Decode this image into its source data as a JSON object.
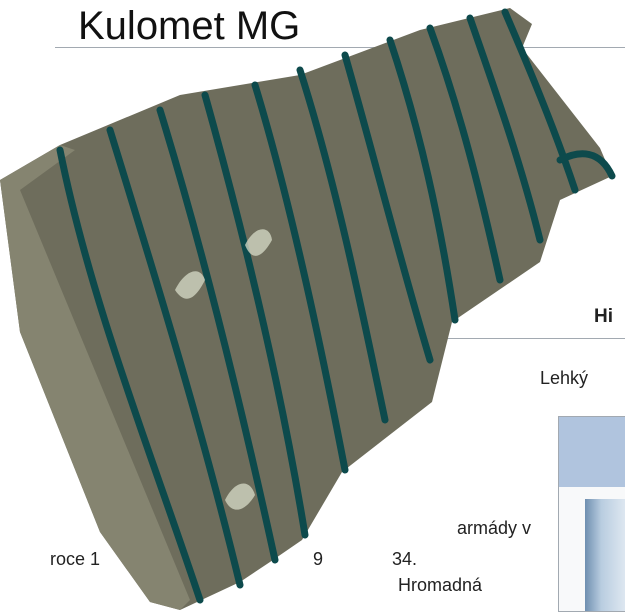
{
  "page": {
    "title": "Kulomet MG",
    "section_heading": "Hi",
    "lead_fragment": "Lehký",
    "body_fragments": [
      "armády v",
      "roce 1",
      "9",
      "34.",
      "Hromadná"
    ]
  }
}
